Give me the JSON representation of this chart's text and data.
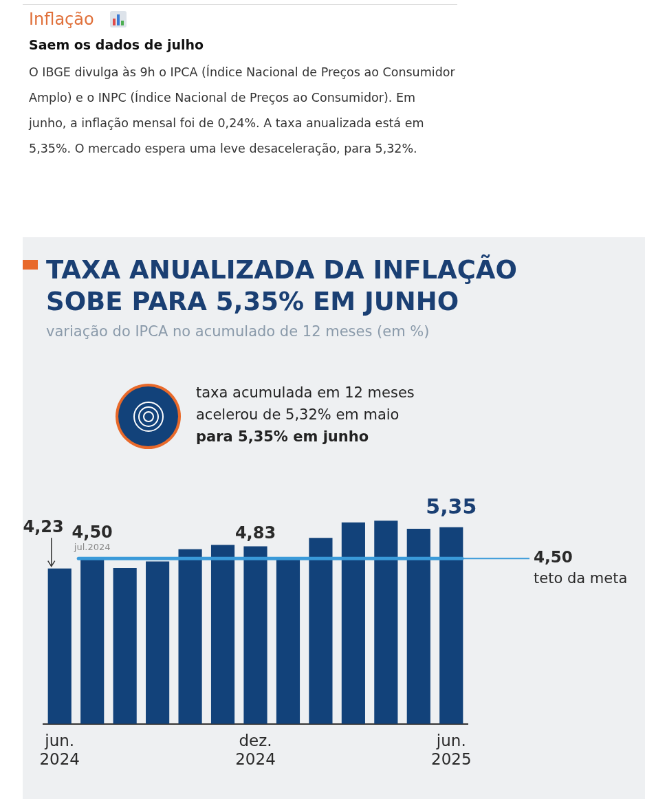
{
  "chart_data": {
    "type": "bar",
    "title": "TAXA ANUALIZADA DA INFLAÇÃO SOBE PARA 5,35% EM JUNHO",
    "subtitle": "variação do IPCA no acumulado de 12 meses (em %)",
    "categories": [
      "jun. 2024",
      null,
      null,
      null,
      null,
      null,
      "dez. 2024",
      null,
      null,
      null,
      null,
      null,
      "jun. 2025"
    ],
    "values": [
      4.23,
      4.5,
      4.24,
      4.42,
      4.75,
      4.87,
      4.83,
      4.5,
      5.06,
      5.48,
      5.53,
      5.31,
      5.35
    ],
    "value_labels": [
      "4,23",
      "4,50",
      null,
      null,
      null,
      null,
      "4,83",
      null,
      null,
      null,
      null,
      null,
      "5,35"
    ],
    "color": "#12427a",
    "ref_lines": [
      {
        "axis": "y",
        "value": 4.5,
        "label": "4,50\nteto da meta",
        "color": "#3a9ad9"
      }
    ],
    "annotations": [
      "Inflação",
      "Saem os dados de julho",
      "O IBGE divulga às 9h o IPCA (Índice Nacional de Preços ao Consumidor Amplo) e o INPC (Índice Nacional de Preços ao Consumidor). Em junho, a inflação mensal foi de 0,24%. A taxa anualizada está em 5,35%. O mercado espera uma leve desaceleração, para 5,32%.",
      "taxa acumulada em 12 meses acelerou de 5,32% em maio",
      "para 5,35% em junho",
      "jul.2024"
    ],
    "grid": false,
    "legend": false
  }
}
